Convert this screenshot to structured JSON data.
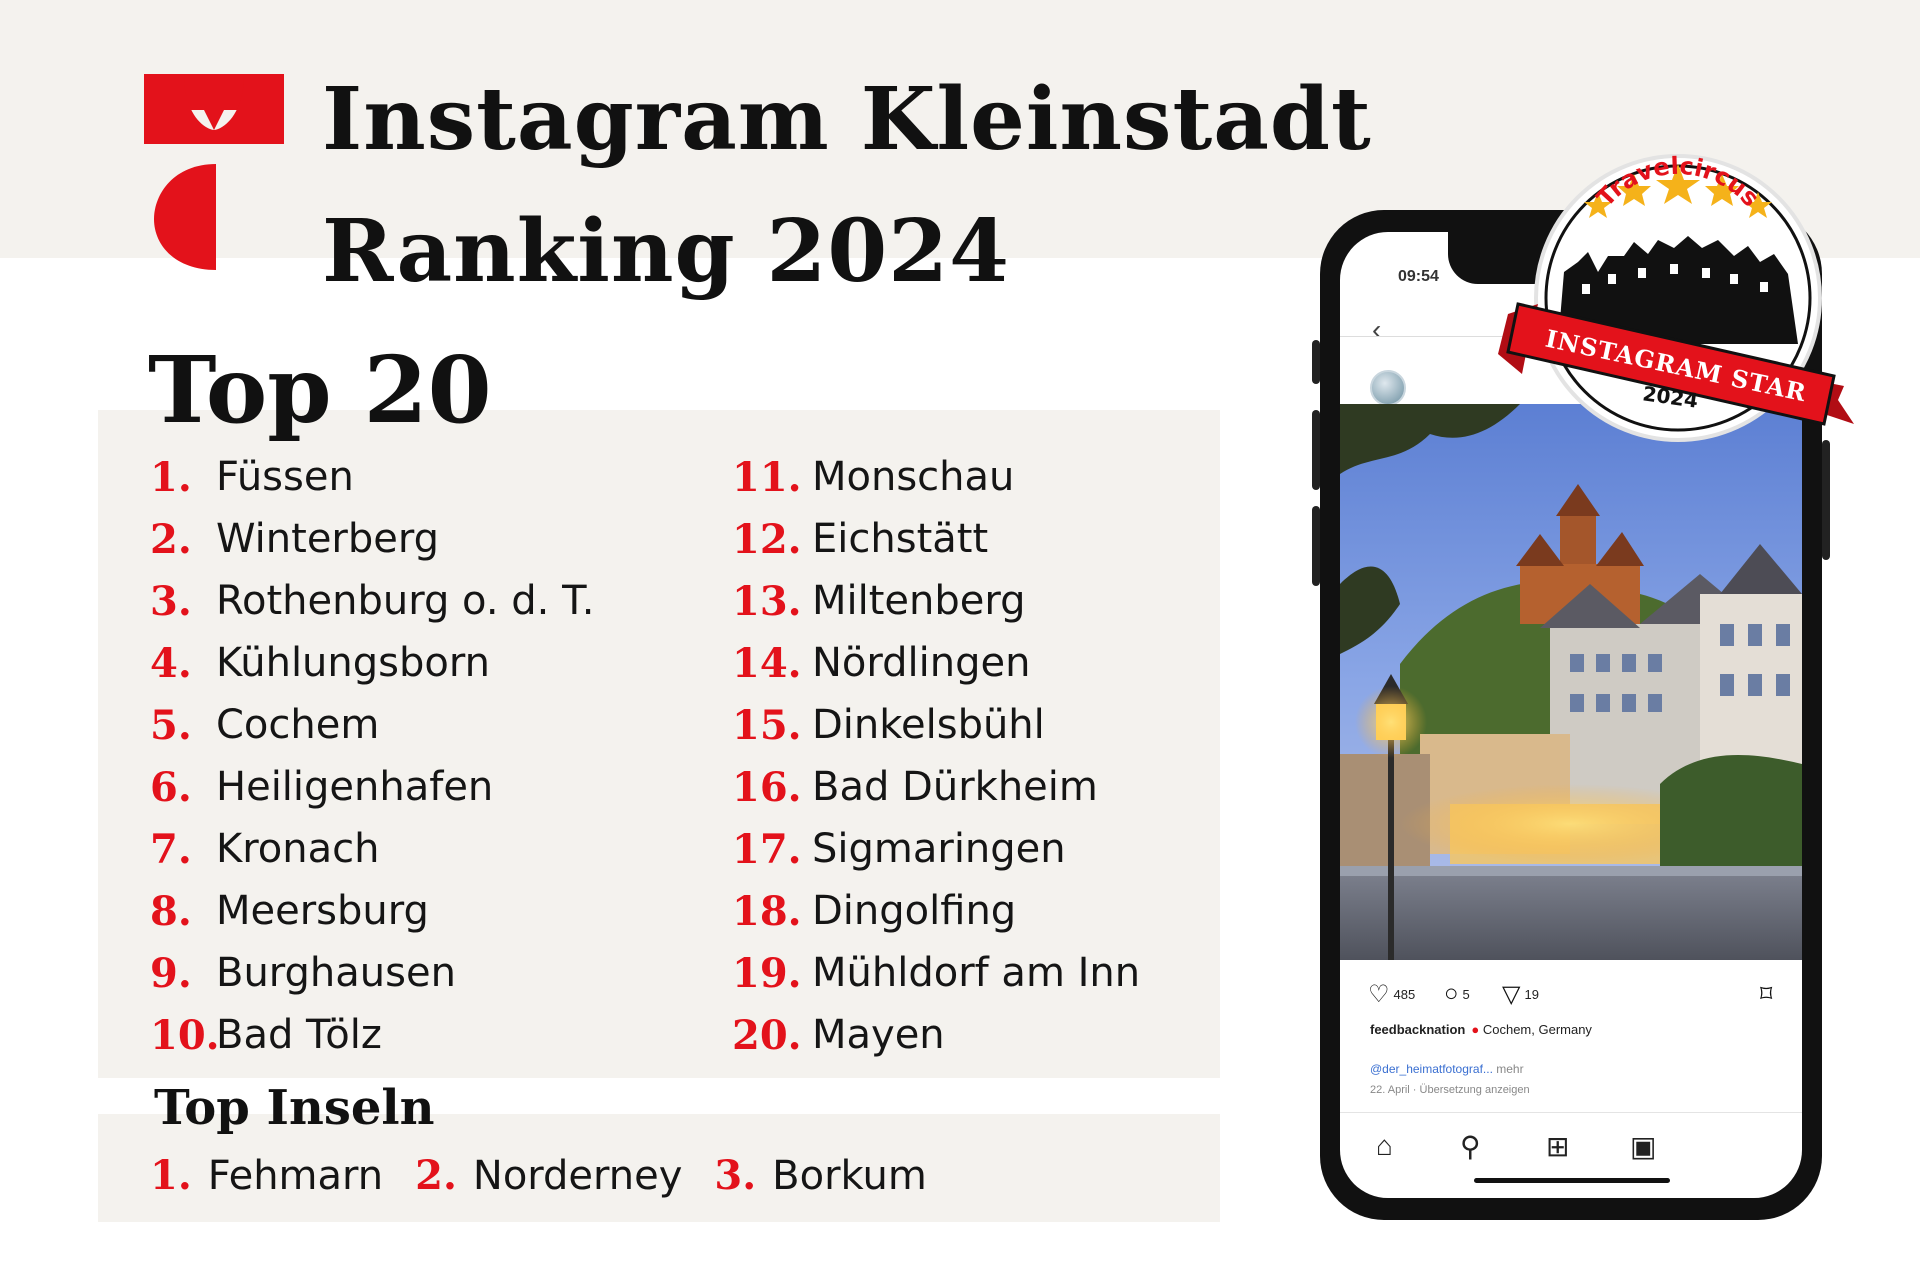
{
  "header": {
    "title_line1": "Instagram Kleinstadt",
    "title_line2": "Ranking 2024"
  },
  "colors": {
    "accent_red": "#e3121b",
    "panel_bg": "#f4f2ee",
    "text": "#151515"
  },
  "top20": {
    "title": "Top 20",
    "left": [
      {
        "rank": "1.",
        "name": "Füssen"
      },
      {
        "rank": "2.",
        "name": "Winterberg"
      },
      {
        "rank": "3.",
        "name": "Rothenburg o. d. T."
      },
      {
        "rank": "4.",
        "name": "Kühlungsborn"
      },
      {
        "rank": "5.",
        "name": "Cochem"
      },
      {
        "rank": "6.",
        "name": "Heiligenhafen"
      },
      {
        "rank": "7.",
        "name": "Kronach"
      },
      {
        "rank": "8.",
        "name": "Meersburg"
      },
      {
        "rank": "9.",
        "name": "Burghausen"
      },
      {
        "rank": "10.",
        "name": "Bad Tölz"
      }
    ],
    "right": [
      {
        "rank": "11.",
        "name": "Monschau"
      },
      {
        "rank": "12.",
        "name": "Eichstätt"
      },
      {
        "rank": "13.",
        "name": "Miltenberg"
      },
      {
        "rank": "14.",
        "name": "Nördlingen"
      },
      {
        "rank": "15.",
        "name": "Dinkelsbühl"
      },
      {
        "rank": "16.",
        "name": "Bad Dürkheim"
      },
      {
        "rank": "17.",
        "name": "Sigmaringen"
      },
      {
        "rank": "18.",
        "name": "Dingolfing"
      },
      {
        "rank": "19.",
        "name": "Mühldorf am Inn"
      },
      {
        "rank": "20.",
        "name": "Mayen"
      }
    ]
  },
  "islands": {
    "title": "Top Inseln",
    "items": [
      {
        "rank": "1.",
        "name": "Fehmarn"
      },
      {
        "rank": "2.",
        "name": "Norderney"
      },
      {
        "rank": "3.",
        "name": "Borkum"
      }
    ]
  },
  "phone": {
    "time": "09:54",
    "likes": "485",
    "comments": "5",
    "shares": "19",
    "username": "feedbacknation",
    "location": "Cochem, Germany",
    "credit": "@der_heimatfotograf...",
    "more": "mehr",
    "date": "22. April",
    "translate": "Übersetzung anzeigen",
    "icons": [
      "back-icon",
      "heart-icon",
      "comment-icon",
      "share-icon",
      "bookmark-icon",
      "home-icon",
      "search-icon",
      "add-icon",
      "reels-icon"
    ]
  },
  "badge": {
    "brand": "Travelcircus",
    "banner": "INSTAGRAM STAR",
    "year": "2024"
  }
}
